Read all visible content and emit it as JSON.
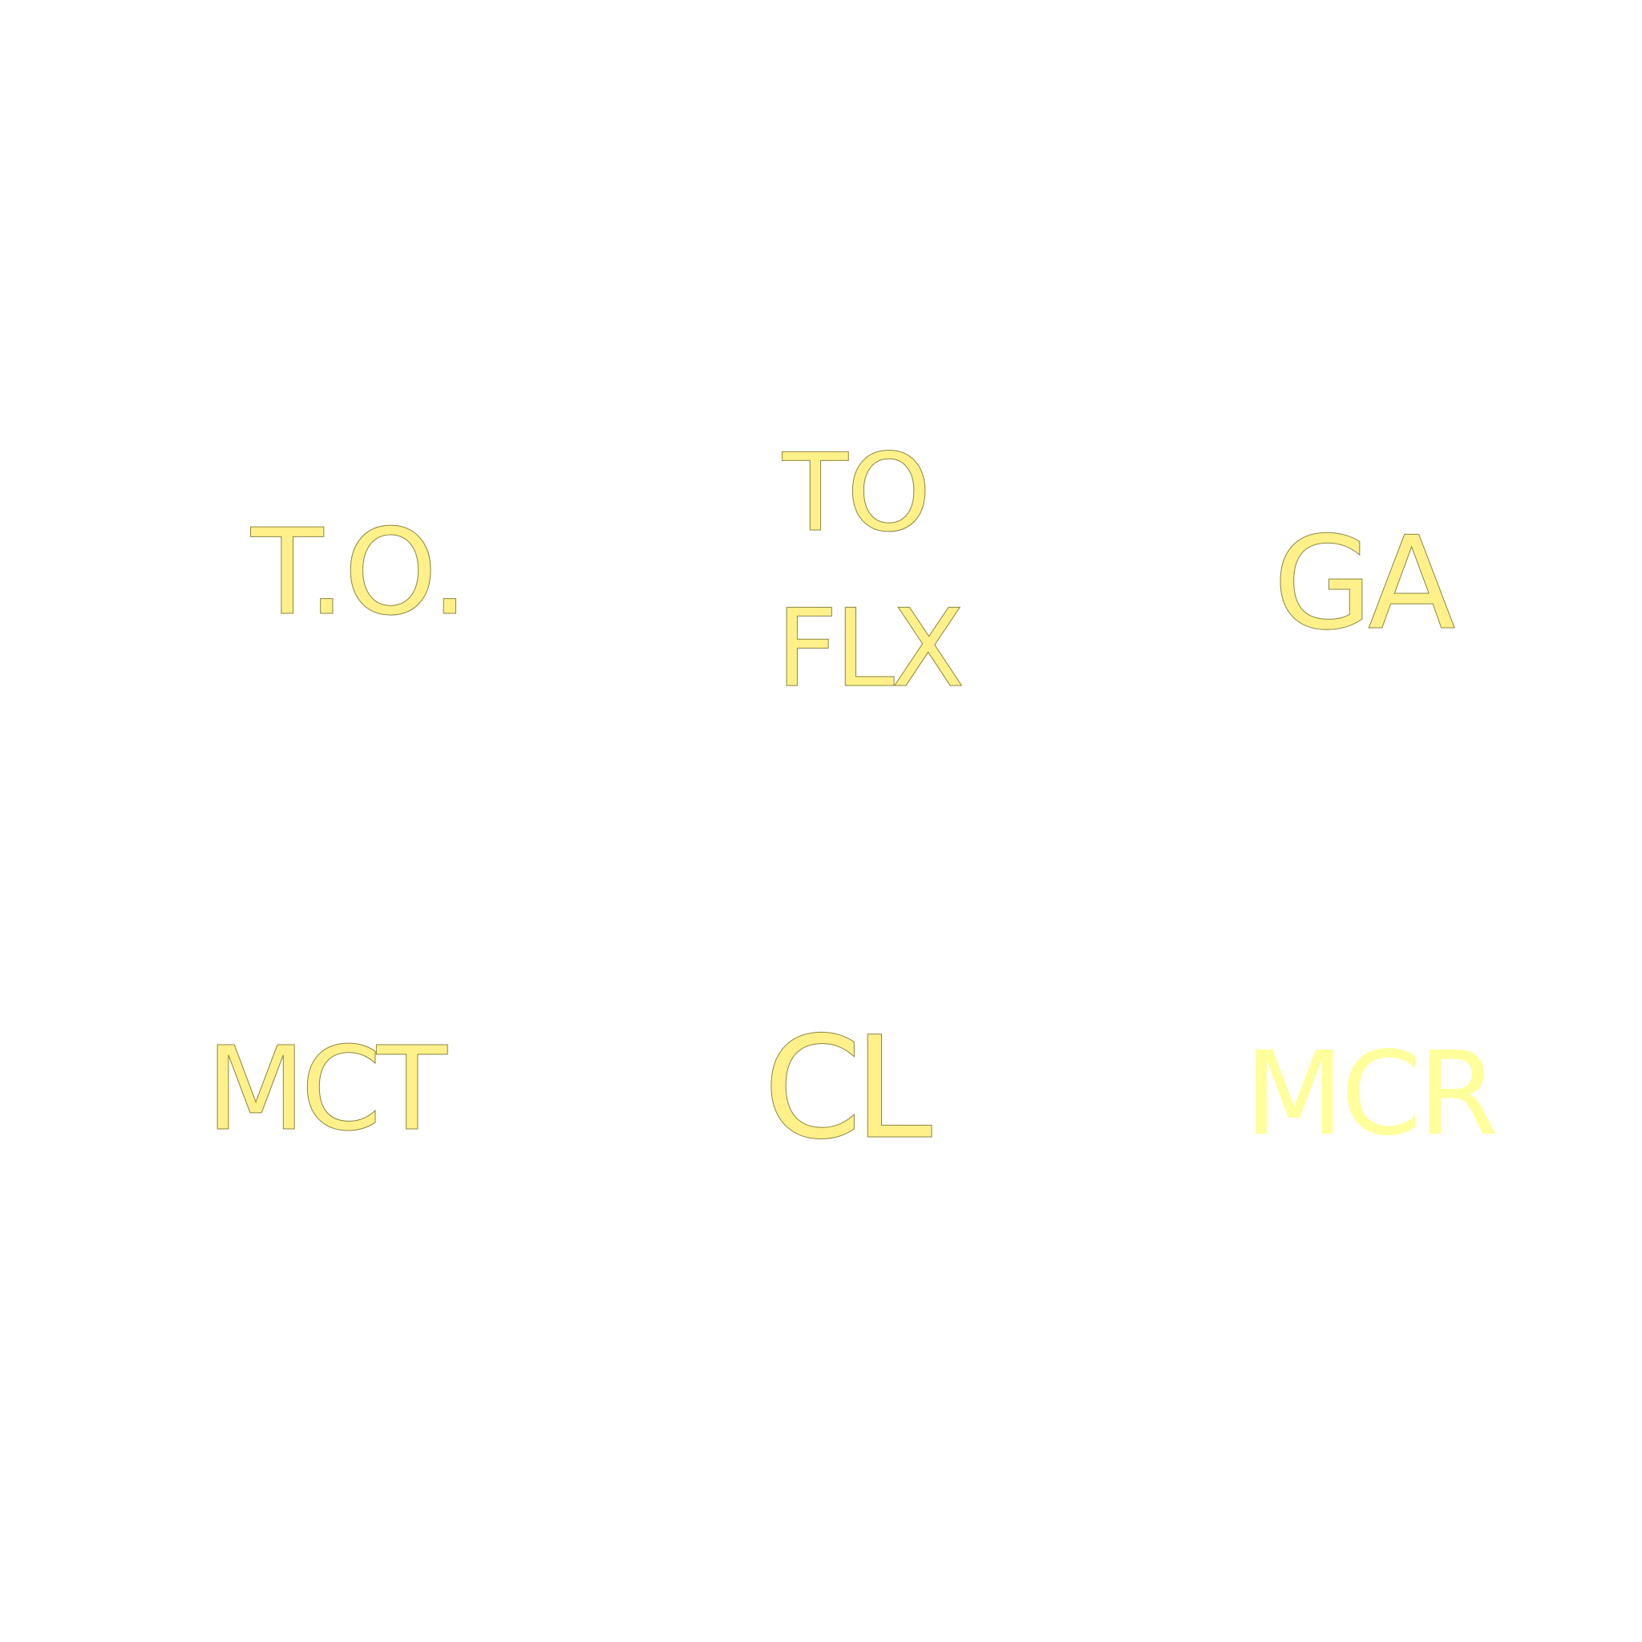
{
  "labels": {
    "to_dots": "T.O.",
    "to": "TO",
    "flx": "FLX",
    "ga": "GA",
    "mct": "MCT",
    "cl": "CL",
    "mcr": "MCR"
  },
  "colors": {
    "background": "#ffffff",
    "label_fill": "#fff08a",
    "label_outline": "#8a8540",
    "mcr_fill": "#ffff9c"
  }
}
